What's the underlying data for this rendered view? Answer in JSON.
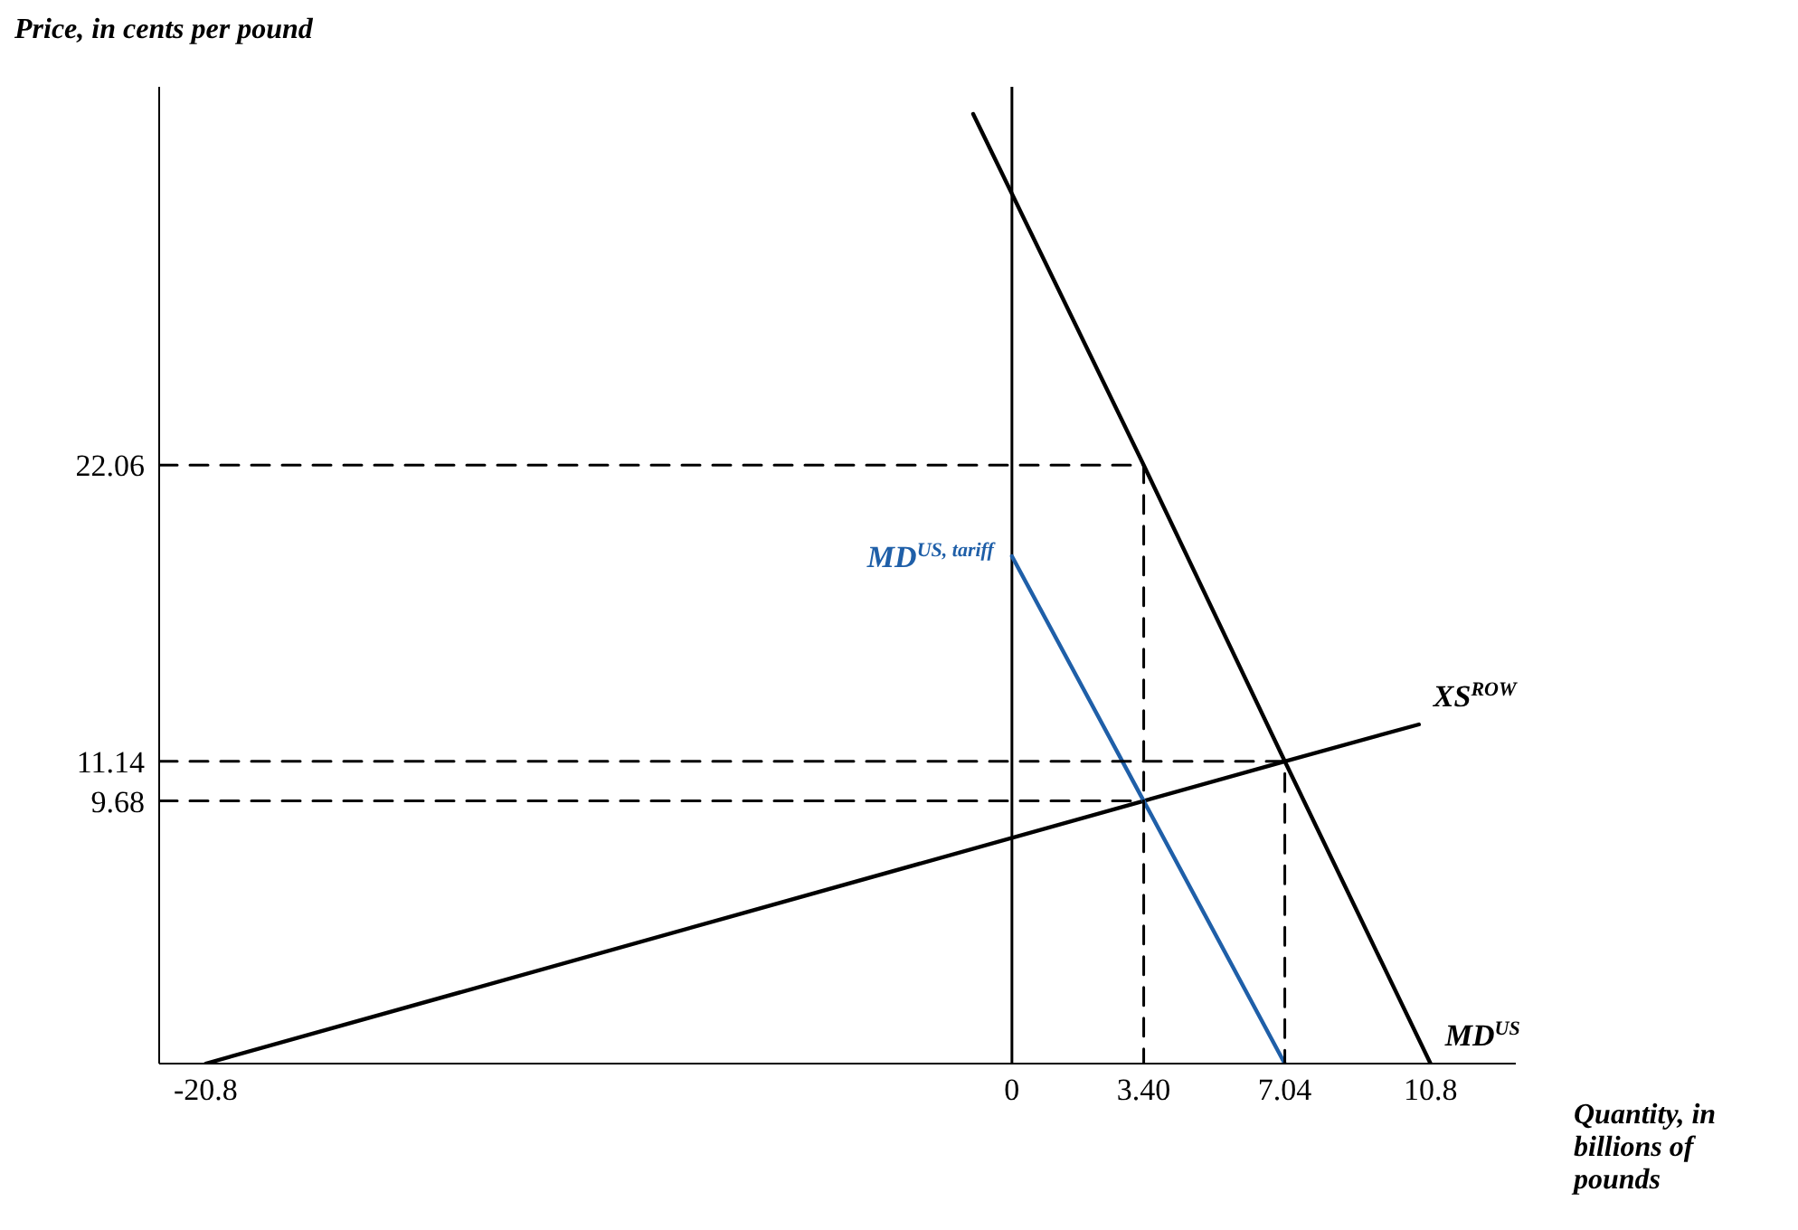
{
  "chart_data": {
    "type": "line",
    "xlabel": "Quantity, in billions of pounds",
    "ylabel": "Price, in cents per pound",
    "xlim": [
      -22,
      13
    ],
    "ylim": [
      0,
      36
    ],
    "xticks": [
      -20.8,
      0,
      {
        "value": 3.4,
        "label": "3.40"
      },
      7.04,
      10.8
    ],
    "yticks": [
      9.68,
      11.14,
      22.06
    ],
    "grid": false,
    "legend": false,
    "marker": "none",
    "line_style": "solid",
    "ref_lines": [
      {
        "axis": "x",
        "value": 0,
        "color": "#000000",
        "line_style": "solid"
      }
    ],
    "series": [
      {
        "name": "XS$^{ROW}$",
        "color": "#000000",
        "x": [
          -20.8,
          3.4,
          7.04,
          10.5
        ],
        "values": [
          0,
          9.68,
          11.14,
          12.5
        ]
      },
      {
        "name": "MD$^{US}$",
        "color": "#000000",
        "x": [
          -1,
          3.4,
          7.04,
          10.8
        ],
        "values": [
          35,
          22.06,
          11.14,
          0
        ]
      },
      {
        "name": "MD$^{US, tariff}$",
        "color": "#1f5fa8",
        "x": [
          0,
          3.4,
          7.04
        ],
        "values": [
          18.7,
          9.68,
          0
        ]
      },
      {
        "color": "#000000",
        "line_style": "dashed",
        "x": [
          -22,
          3.4,
          3.4
        ],
        "values": [
          22.06,
          22.06,
          0
        ]
      },
      {
        "color": "#000000",
        "line_style": "dashed",
        "x": [
          -22,
          7.04,
          7.04
        ],
        "values": [
          11.14,
          11.14,
          0
        ]
      },
      {
        "color": "#000000",
        "line_style": "dashed",
        "x": [
          -22,
          3.4
        ],
        "values": [
          9.68,
          9.68
        ]
      }
    ]
  }
}
